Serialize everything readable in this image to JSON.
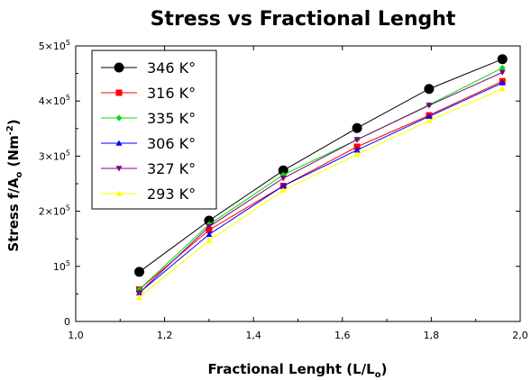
{
  "chart_data": {
    "type": "line",
    "title": "Stress vs Fractional Lenght",
    "xlabel": "Fractional Lenght (L/L",
    "xlabel_sub": "o",
    "xlabel_end": ")",
    "ylabel": "Stress f/A",
    "ylabel_sub": "o",
    "ylabel_unit": " (Nm",
    "ylabel_sup": "-2",
    "ylabel_end": ")",
    "xlim": [
      1.0,
      2.0
    ],
    "ylim": [
      0,
      500000
    ],
    "x_ticks": [
      1.0,
      1.2,
      1.4,
      1.6,
      1.8,
      2.0
    ],
    "x_tick_labels": [
      "1,0",
      "1,2",
      "1,4",
      "1,6",
      "1,8",
      "2,0"
    ],
    "y_ticks": [
      0,
      100000,
      200000,
      300000,
      400000,
      500000
    ],
    "y_tick_labels": [
      {
        "base": "0",
        "sup": ""
      },
      {
        "base": "10",
        "sup": "5"
      },
      {
        "base": "2×10",
        "sup": "5"
      },
      {
        "base": "3×10",
        "sup": "5"
      },
      {
        "base": "4×10",
        "sup": "5"
      },
      {
        "base": "5×10",
        "sup": "5"
      }
    ],
    "grid": false,
    "legend_position": "top-left",
    "x": [
      1.143,
      1.3,
      1.467,
      1.633,
      1.795,
      1.96
    ],
    "series": [
      {
        "name": "346 K°",
        "color": "#000000",
        "marker": "circle",
        "values": [
          90000,
          183000,
          274000,
          351000,
          422000,
          476000
        ]
      },
      {
        "name": "316 K°",
        "color": "#ff0000",
        "marker": "square",
        "values": [
          58000,
          166000,
          246000,
          317000,
          374000,
          436000
        ]
      },
      {
        "name": "335 K°",
        "color": "#00dd00",
        "marker": "diamond",
        "values": [
          58000,
          176000,
          266000,
          330000,
          393000,
          460000
        ]
      },
      {
        "name": "306 K°",
        "color": "#0000ff",
        "marker": "triangle-up",
        "values": [
          52000,
          158000,
          246000,
          311000,
          372000,
          433000
        ]
      },
      {
        "name": "327 K°",
        "color": "#800080",
        "marker": "triangle-down",
        "values": [
          52000,
          172000,
          260000,
          330000,
          392000,
          452000
        ]
      },
      {
        "name": "293 K°",
        "color": "#ffff00",
        "marker": "triangle-up",
        "values": [
          44000,
          147000,
          238000,
          303000,
          364000,
          422000
        ]
      }
    ]
  }
}
